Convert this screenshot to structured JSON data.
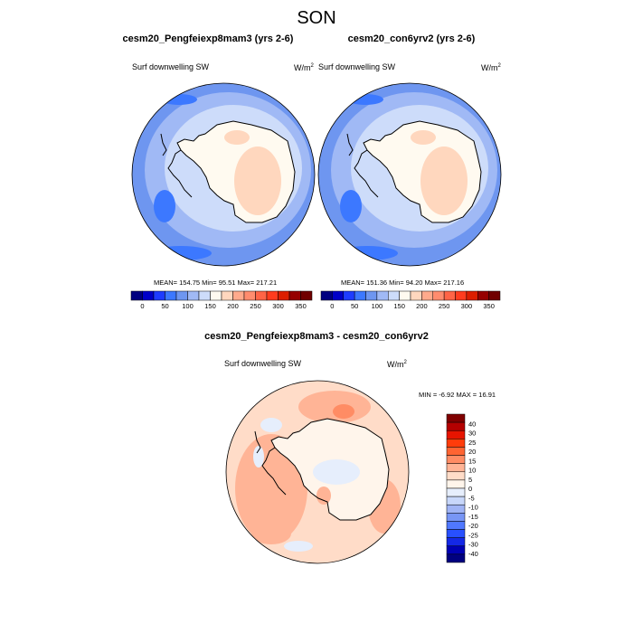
{
  "title": "SON",
  "colors": {
    "abs_levels": [
      "#000080",
      "#0000c8",
      "#1e3cff",
      "#3c78ff",
      "#6e96f0",
      "#a0b9f5",
      "#cddcfa",
      "#fffaf0",
      "#ffd7be",
      "#ffaa8c",
      "#ff8c6e",
      "#ff6446",
      "#ff3c1e",
      "#dc1e00",
      "#960000",
      "#700000"
    ],
    "diff_levels": [
      "#000080",
      "#0000b4",
      "#1428e6",
      "#2850ff",
      "#5078ff",
      "#7896f5",
      "#a0b4f5",
      "#c8d7fa",
      "#e6eefc",
      "#fff5eb",
      "#ffdcc8",
      "#ffb496",
      "#ff8c64",
      "#ff6432",
      "#ff3c0a",
      "#e61400",
      "#b40000",
      "#800000"
    ],
    "coast": "#000000"
  },
  "panels": [
    {
      "title": "cesm20_Pengfeiexp8mam3 (yrs 2-6)",
      "left_label": "Surf downwelling SW",
      "units": "W/m",
      "units_exp": "2",
      "stats": "MEAN= 154.75  Min=  95.51  Max= 217.21"
    },
    {
      "title": "cesm20_con6yrv2 (yrs 2-6)",
      "left_label": "Surf downwelling SW",
      "units": "W/m",
      "units_exp": "2",
      "stats": "MEAN= 151.36  Min=  94.20  Max= 217.16"
    },
    {
      "title": "cesm20_Pengfeiexp8mam3 - cesm20_con6yrv2",
      "left_label": "Surf downwelling SW",
      "units": "W/m",
      "units_exp": "2",
      "stats": "MIN =  -6.92 MAX =  16.91"
    }
  ],
  "chart_data": [
    {
      "type": "heatmap",
      "projection": "south polar stereographic",
      "title": "cesm20_Pengfeiexp8mam3 (yrs 2-6)",
      "variable": "Surf downwelling SW",
      "units": "W/m2",
      "mean": 154.75,
      "min": 95.51,
      "max": 217.21,
      "colorbar_ticks": [
        0,
        50,
        100,
        150,
        200,
        250,
        300,
        350
      ],
      "colorbar_labels": [
        "0",
        "50",
        "100",
        "150",
        "200",
        "250",
        "300",
        "350"
      ]
    },
    {
      "type": "heatmap",
      "projection": "south polar stereographic",
      "title": "cesm20_con6yrv2 (yrs 2-6)",
      "variable": "Surf downwelling SW",
      "units": "W/m2",
      "mean": 151.36,
      "min": 94.2,
      "max": 217.16,
      "colorbar_ticks": [
        0,
        50,
        100,
        150,
        200,
        250,
        300,
        350
      ],
      "colorbar_labels": [
        "0",
        "50",
        "100",
        "150",
        "200",
        "250",
        "300",
        "350"
      ]
    },
    {
      "type": "heatmap",
      "projection": "south polar stereographic",
      "title": "cesm20_Pengfeiexp8mam3 - cesm20_con6yrv2",
      "variable": "Surf downwelling SW",
      "units": "W/m2",
      "min": -6.92,
      "max": 16.91,
      "colorbar_labels": [
        "40",
        "30",
        "25",
        "20",
        "15",
        "10",
        "5",
        "0",
        "-5",
        "-10",
        "-15",
        "-20",
        "-25",
        "-30",
        "-40"
      ]
    }
  ]
}
